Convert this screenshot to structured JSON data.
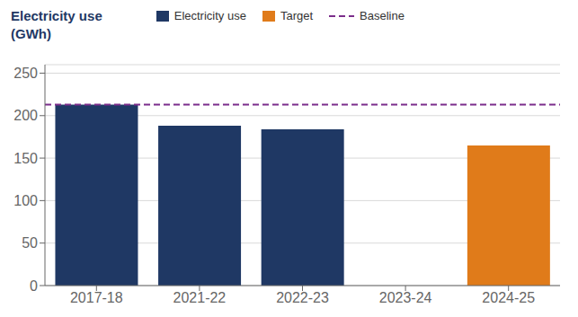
{
  "chart_data": {
    "type": "bar",
    "title": "Electricity use",
    "subtitle": "(GWh)",
    "categories": [
      "2017-18",
      "2021-22",
      "2022-23",
      "2023-24",
      "2024-25"
    ],
    "series": [
      {
        "name": "Electricity use",
        "color": "#1f3864",
        "values": [
          213,
          188,
          184,
          null,
          null
        ]
      },
      {
        "name": "Target",
        "color": "#e07b1a",
        "values": [
          null,
          null,
          null,
          null,
          165
        ]
      }
    ],
    "baseline": {
      "name": "Baseline",
      "value": 213,
      "color": "#7b2d8b",
      "line_style": "dashed"
    },
    "ylim": [
      0,
      260
    ],
    "yticks": [
      0,
      50,
      100,
      150,
      200,
      250
    ],
    "grid": true
  }
}
